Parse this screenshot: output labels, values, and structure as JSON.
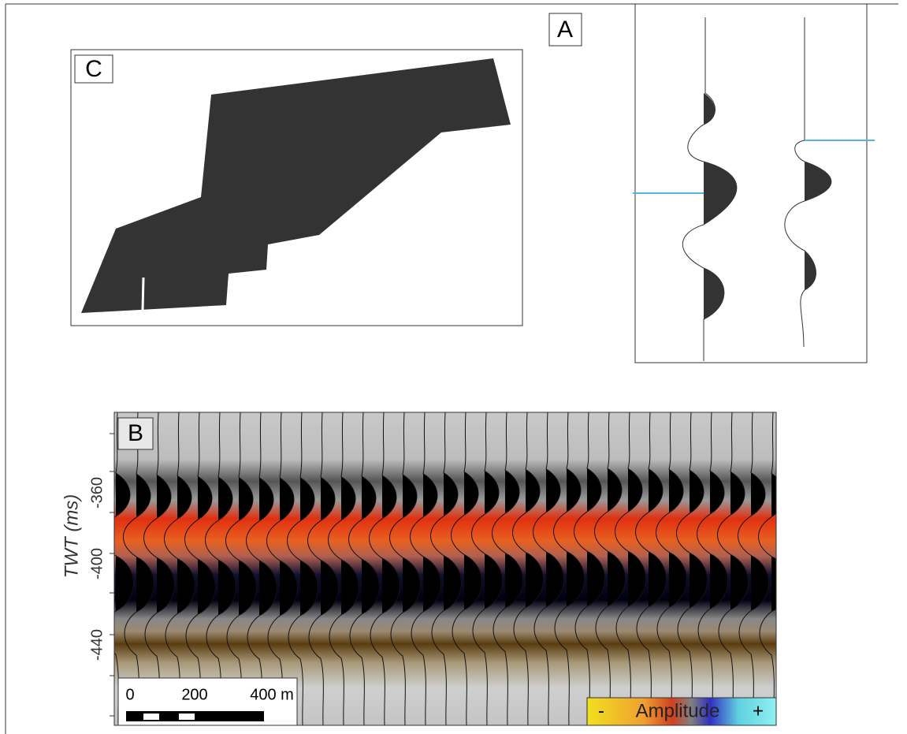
{
  "panel_a": {
    "label": "A"
  },
  "panel_b": {
    "label": "B",
    "y_axis_label": "TWT (ms)",
    "y_tick_labels": [
      "-360",
      "-400",
      "-440"
    ],
    "scale_bar": {
      "labels": [
        "0",
        "200",
        "400 m"
      ]
    },
    "colorbar": {
      "minus": "-",
      "title": "Amplitude",
      "plus": "+"
    }
  },
  "panel_c": {
    "label": "C"
  }
}
